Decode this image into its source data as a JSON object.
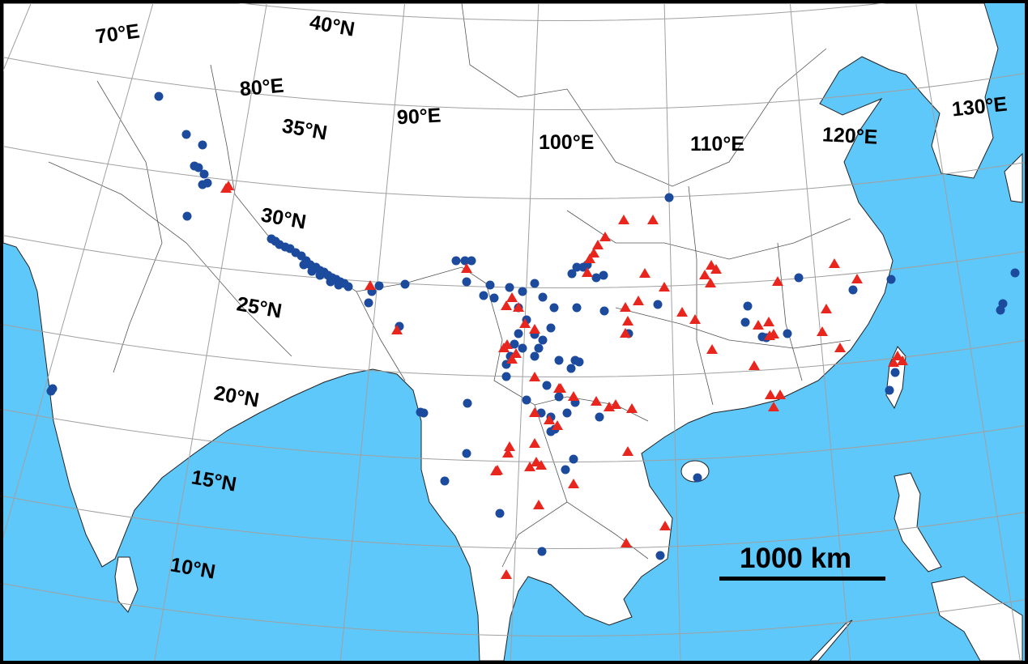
{
  "map": {
    "colors": {
      "ocean": "#5ec8fa",
      "land": "#ffffff",
      "graticule": "#a0a0a0",
      "borders": "#555555",
      "blue_marker": "#1c4a9c",
      "red_marker": "#e8261e"
    },
    "longitude_labels": [
      "70°E",
      "80°E",
      "90°E",
      "100°E",
      "110°E",
      "120°E",
      "130°E"
    ],
    "latitude_labels": [
      "40°N",
      "35°N",
      "30°N",
      "25°N",
      "20°N",
      "15°N",
      "10°N"
    ],
    "scale_bar": {
      "label": "1000 km"
    },
    "marker_types": [
      {
        "shape": "circle",
        "color": "#1c4a9c"
      },
      {
        "shape": "triangle",
        "color": "#e8261e"
      }
    ]
  }
}
